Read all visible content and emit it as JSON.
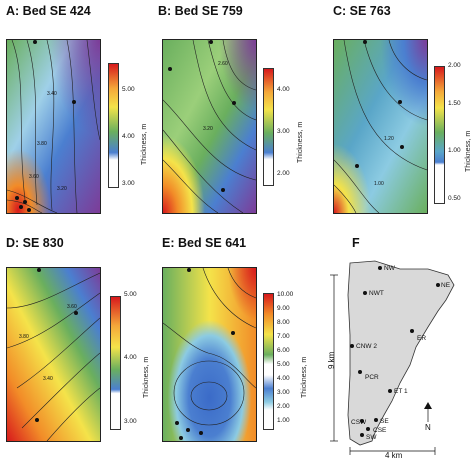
{
  "chart_data": [
    {
      "id": "A",
      "type": "heatmap",
      "title": "A: Bed SE 424",
      "colorbar_label": "Thickness, m",
      "colorbar_ticks": [
        "5.00",
        "4.00",
        "3.00"
      ],
      "colorbar_range": [
        2.6,
        5.2
      ],
      "contour_labels": [
        "3.40",
        "3.80",
        "3.60",
        "3.20"
      ]
    },
    {
      "id": "B",
      "type": "heatmap",
      "title": "B: Bed SE 759",
      "colorbar_label": "Thickness, m",
      "colorbar_ticks": [
        "4.00",
        "3.00",
        "2.00"
      ],
      "colorbar_range": [
        1.6,
        4.4
      ],
      "contour_labels": [
        "2.60",
        "3.20"
      ]
    },
    {
      "id": "C",
      "type": "heatmap",
      "title": "C: SE 763",
      "colorbar_label": "Thickness, m",
      "colorbar_ticks": [
        "2.00",
        "1.50",
        "1.00",
        "0.50"
      ],
      "colorbar_range": [
        0.3,
        2.0
      ],
      "contour_labels": [
        "1.20",
        "1.00"
      ]
    },
    {
      "id": "D",
      "type": "heatmap",
      "title": "D: SE 830",
      "colorbar_label": "Thickness, m",
      "colorbar_ticks": [
        "5.00",
        "4.00",
        "3.00"
      ],
      "colorbar_range": [
        2.6,
        5.0
      ],
      "contour_labels": [
        "3.60",
        "3.80",
        "3.40"
      ]
    },
    {
      "id": "E",
      "type": "heatmap",
      "title": "E: Bed SE 641",
      "colorbar_label": "Thickness, m",
      "colorbar_ticks": [
        "10.00",
        "9.00",
        "8.00",
        "7.00",
        "6.00",
        "5.00",
        "4.00",
        "3.00",
        "2.00",
        "1.00"
      ],
      "colorbar_range": [
        0.5,
        10.3
      ],
      "contour_labels": []
    }
  ],
  "panel_f": {
    "title": "F",
    "sites": [
      "NW",
      "NWT",
      "NE",
      "CNW 2",
      "ER",
      "PCR",
      "ET 1",
      "SE",
      "CSE",
      "CSW",
      "SW"
    ],
    "scale_vertical": "9 km",
    "scale_horizontal": "4 km",
    "north_label": "N"
  },
  "colors": {
    "red": "#d7191c",
    "orange": "#f28c28",
    "yellow": "#f4e34a",
    "green": "#6aaf5e",
    "blue": "#4b7fd0",
    "purple": "#7d3c98",
    "land": "#d9d9d9"
  }
}
